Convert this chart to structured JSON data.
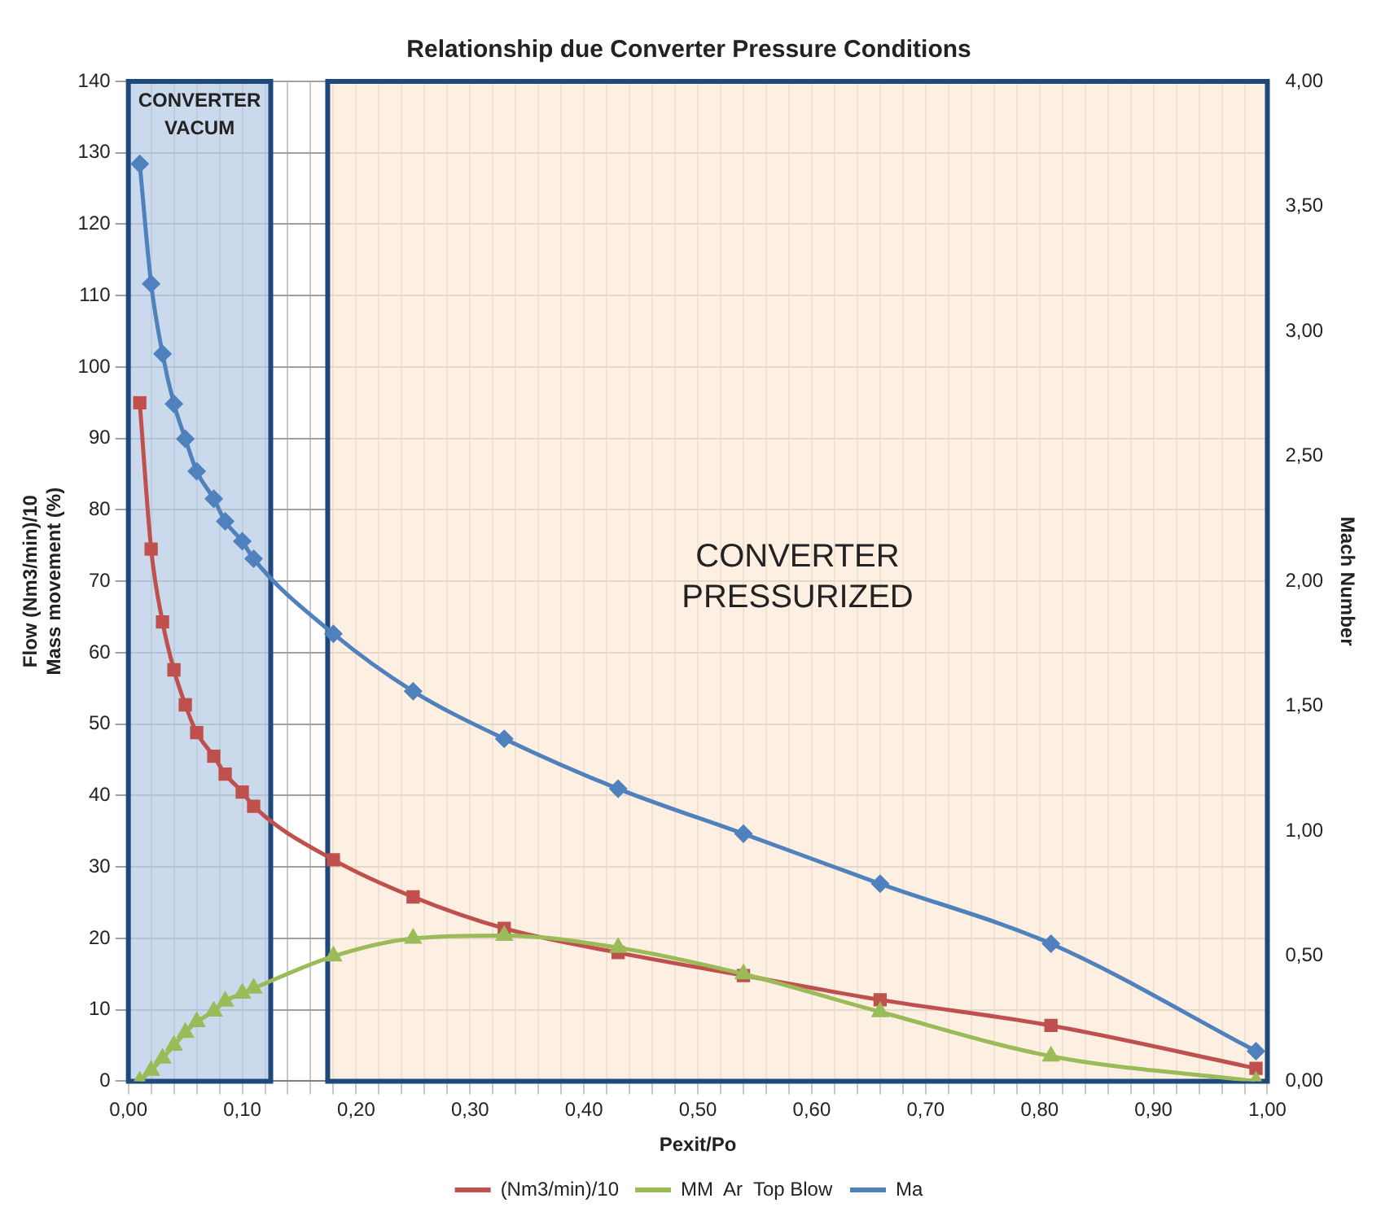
{
  "chart_data": {
    "type": "line",
    "title": "Relationship due Converter Pressure Conditions",
    "xlabel": "Pexit/Po",
    "ylabel": "Flow (Nm3/min)/10\nMass movement (%)",
    "y2label": "Mach Number",
    "xlim": [
      0,
      1
    ],
    "ylim": [
      0,
      140
    ],
    "y2lim": [
      0,
      4
    ],
    "xticks": [
      {
        "value": 0,
        "label": "0,00"
      },
      {
        "value": 0.02,
        "label": null
      },
      {
        "value": 0.04,
        "label": null
      },
      {
        "value": 0.06,
        "label": null
      },
      {
        "value": 0.08,
        "label": null
      },
      {
        "value": 0.1,
        "label": "0,10"
      },
      {
        "value": 0.12,
        "label": null
      },
      {
        "value": 0.14,
        "label": null
      },
      {
        "value": 0.16,
        "label": null
      },
      {
        "value": 0.18,
        "label": null
      },
      {
        "value": 0.2,
        "label": "0,20"
      },
      {
        "value": 0.22,
        "label": null
      },
      {
        "value": 0.24,
        "label": null
      },
      {
        "value": 0.26,
        "label": null
      },
      {
        "value": 0.28,
        "label": null
      },
      {
        "value": 0.3,
        "label": "0,30"
      },
      {
        "value": 0.32,
        "label": null
      },
      {
        "value": 0.34,
        "label": null
      },
      {
        "value": 0.36,
        "label": null
      },
      {
        "value": 0.38,
        "label": null
      },
      {
        "value": 0.4,
        "label": "0,40"
      },
      {
        "value": 0.42,
        "label": null
      },
      {
        "value": 0.44,
        "label": null
      },
      {
        "value": 0.46,
        "label": null
      },
      {
        "value": 0.48,
        "label": null
      },
      {
        "value": 0.5,
        "label": "0,50"
      },
      {
        "value": 0.52,
        "label": null
      },
      {
        "value": 0.54,
        "label": null
      },
      {
        "value": 0.56,
        "label": null
      },
      {
        "value": 0.58,
        "label": null
      },
      {
        "value": 0.6,
        "label": "0,60"
      },
      {
        "value": 0.62,
        "label": null
      },
      {
        "value": 0.64,
        "label": null
      },
      {
        "value": 0.66,
        "label": null
      },
      {
        "value": 0.68,
        "label": null
      },
      {
        "value": 0.7,
        "label": "0,70"
      },
      {
        "value": 0.72,
        "label": null
      },
      {
        "value": 0.74,
        "label": null
      },
      {
        "value": 0.76,
        "label": null
      },
      {
        "value": 0.78,
        "label": null
      },
      {
        "value": 0.8,
        "label": "0,80"
      },
      {
        "value": 0.82,
        "label": null
      },
      {
        "value": 0.84,
        "label": null
      },
      {
        "value": 0.86,
        "label": null
      },
      {
        "value": 0.88,
        "label": null
      },
      {
        "value": 0.9,
        "label": "0,90"
      },
      {
        "value": 0.92,
        "label": null
      },
      {
        "value": 0.94,
        "label": null
      },
      {
        "value": 0.96,
        "label": null
      },
      {
        "value": 0.98,
        "label": null
      },
      {
        "value": 1,
        "label": "1,00"
      }
    ],
    "yticks": [
      0,
      10,
      20,
      30,
      40,
      50,
      60,
      70,
      80,
      90,
      100,
      110,
      120,
      130,
      140
    ],
    "y2ticks": [
      {
        "value": 0,
        "label": "0,00"
      },
      {
        "value": 0.5,
        "label": "0,50"
      },
      {
        "value": 1,
        "label": "1,00"
      },
      {
        "value": 1.5,
        "label": "1,50"
      },
      {
        "value": 2,
        "label": "2,00"
      },
      {
        "value": 2.5,
        "label": "2,50"
      },
      {
        "value": 3,
        "label": "3,00"
      },
      {
        "value": 3.5,
        "label": "3,50"
      },
      {
        "value": 4,
        "label": "4,00"
      }
    ],
    "grid": true,
    "legend": "bottom",
    "line_style": "solid",
    "x": [
      0.01,
      0.02,
      0.03,
      0.04,
      0.05,
      0.06,
      0.075,
      0.085,
      0.1,
      0.11,
      0.18,
      0.25,
      0.33,
      0.43,
      0.54,
      0.66,
      0.81,
      0.99
    ],
    "series": [
      {
        "name": "(Nm3/min)/10",
        "color": "#c0504d",
        "marker": "square",
        "values": [
          95,
          74.5,
          64.3,
          57.6,
          52.7,
          48.8,
          45.5,
          43,
          40.5,
          38.5,
          31,
          25.8,
          21.4,
          18,
          14.8,
          11.4,
          7.8,
          1.8
        ]
      },
      {
        "name": "MM  Ar  Top Blow",
        "color": "#9bbb59",
        "marker": "triangle",
        "values": [
          0,
          1.5,
          3.2,
          5,
          6.8,
          8.3,
          9.8,
          11.2,
          12.3,
          13,
          17.5,
          20,
          20.4,
          18.7,
          15,
          9.7,
          3.5,
          0
        ]
      },
      {
        "name": "Ma",
        "color": "#4f81bd",
        "marker": "diamond",
        "axis": "y2",
        "values": [
          3.67,
          3.19,
          2.91,
          2.71,
          2.57,
          2.44,
          2.33,
          2.24,
          2.16,
          2.09,
          1.79,
          1.56,
          1.37,
          1.17,
          0.99,
          0.79,
          0.55,
          0.12
        ]
      }
    ],
    "bands": [
      {
        "axis": "x",
        "from": 0,
        "to": 0.125,
        "label": "CONVERTER VACUM",
        "color": "#b8cce4"
      },
      {
        "axis": "x",
        "from": 0.175,
        "to": 1,
        "label": "CONVERTER PRESSURIZED",
        "color": "#fde9d9"
      }
    ]
  }
}
